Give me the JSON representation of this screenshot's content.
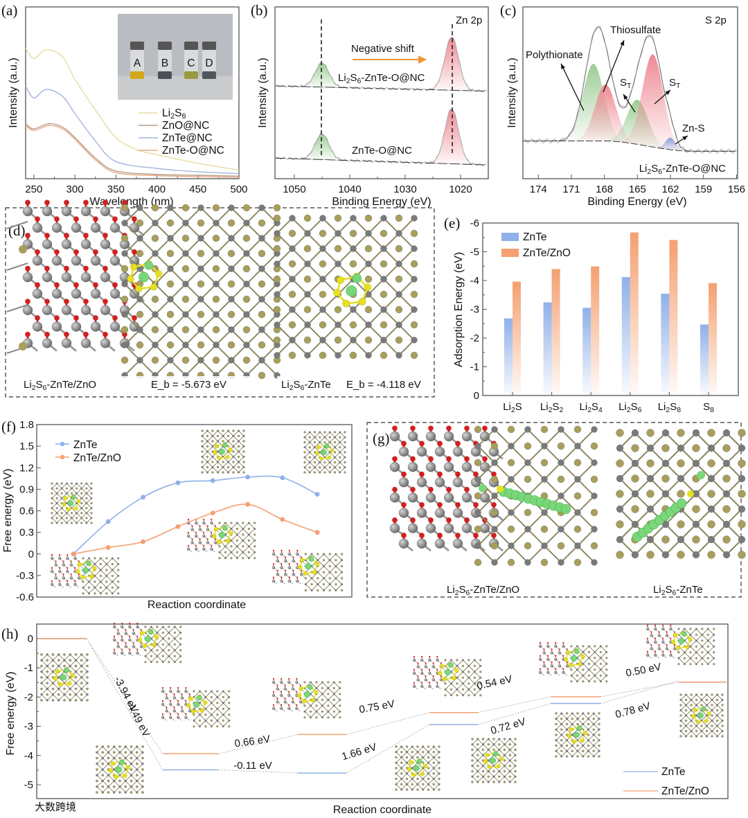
{
  "colors": {
    "znte": "#8fb0e8",
    "znte_zno": "#f4a070",
    "axis": "#555555",
    "green": "#9ccc94",
    "red": "#ee8a94",
    "blue": "#8a9ed8",
    "olive": "#a89f5c",
    "grey": "#7a7a7a",
    "o_red": "#d22020",
    "s_yellow": "#e6e020",
    "li_green": "#7bd67b"
  },
  "panel_labels": {
    "a": "(a)",
    "b": "(b)",
    "c": "(c)",
    "d": "(d)",
    "e": "(e)",
    "f": "(f)",
    "g": "(g)",
    "h": "(h)"
  },
  "chart_data": [
    {
      "id": "a",
      "type": "line",
      "xlabel": "Wavelength (nm)",
      "ylabel": "Intensity (a.u.)",
      "xlim": [
        240,
        500
      ],
      "ylim": [
        0,
        1
      ],
      "xticks": [
        "250",
        "300",
        "350",
        "400",
        "450",
        "500"
      ],
      "inset_labels": [
        "A",
        "B",
        "C",
        "D"
      ],
      "series": [
        {
          "name": "Li_2S_6",
          "color": "#e8dca0",
          "x": [
            240,
            250,
            265,
            285,
            300,
            325,
            350,
            375,
            400,
            450,
            500
          ],
          "y": [
            0.76,
            0.7,
            0.75,
            0.71,
            0.58,
            0.4,
            0.24,
            0.17,
            0.14,
            0.09,
            0.05
          ]
        },
        {
          "name": "ZnO@NC",
          "color": "#b89a80",
          "x": [
            240,
            250,
            268,
            285,
            300,
            325,
            350,
            400,
            450,
            500
          ],
          "y": [
            0.32,
            0.29,
            0.32,
            0.3,
            0.24,
            0.12,
            0.045,
            0.025,
            0.02,
            0.015
          ]
        },
        {
          "name": "ZnTe@NC",
          "color": "#a3b4dc",
          "x": [
            240,
            250,
            265,
            285,
            300,
            325,
            350,
            400,
            450,
            500
          ],
          "y": [
            0.54,
            0.47,
            0.52,
            0.48,
            0.38,
            0.22,
            0.1,
            0.06,
            0.04,
            0.03
          ]
        },
        {
          "name": "ZnTe-O@NC",
          "color": "#e8a888",
          "x": [
            240,
            250,
            268,
            285,
            300,
            325,
            350,
            400,
            450,
            500
          ],
          "y": [
            0.31,
            0.28,
            0.31,
            0.29,
            0.23,
            0.11,
            0.035,
            0.018,
            0.012,
            0.008
          ]
        }
      ]
    },
    {
      "id": "b",
      "type": "line",
      "xlabel": "Binding Energy (eV)",
      "ylabel": "Intensity (a.u.)",
      "xlim": [
        1053.5,
        1015
      ],
      "ylim": [
        0,
        1
      ],
      "xticks": [
        "1050",
        "1040",
        "1030",
        "1020"
      ],
      "xtick_values": [
        1050,
        1040,
        1030,
        1020
      ],
      "title": "Zn 2p",
      "annotation": "Negative shift",
      "series": [
        {
          "name": "Li_2S_6-ZnTe-O@NC",
          "baseline": [
            0.54,
            0.51
          ],
          "peaks": [
            {
              "center": 1045.0,
              "amp": 0.14,
              "color": "green"
            },
            {
              "center": 1021.6,
              "amp": 0.31,
              "color": "red"
            }
          ]
        },
        {
          "name": "ZnTe-O@NC",
          "baseline": [
            0.12,
            0.08
          ],
          "peaks": [
            {
              "center": 1045.0,
              "amp": 0.15,
              "color": "green"
            },
            {
              "center": 1021.6,
              "amp": 0.32,
              "color": "red"
            }
          ]
        }
      ]
    },
    {
      "id": "c",
      "type": "line",
      "xlabel": "Binding Energy (eV)",
      "ylabel": "Intensity (a.u.)",
      "xlim": [
        175.4,
        155.9
      ],
      "ylim": [
        0,
        1
      ],
      "xticks": [
        "174",
        "171",
        "168",
        "165",
        "162",
        "159",
        "156"
      ],
      "xtick_values": [
        174,
        171,
        168,
        165,
        162,
        159,
        156
      ],
      "title": "S 2p",
      "sample": "Li_2S_6-ZnTe-O@NC",
      "baseline": [
        0.22,
        0.16
      ],
      "components": [
        {
          "name": "Polythionate",
          "center": 169.0,
          "amp": 0.45,
          "color": "green"
        },
        {
          "name": "Thiosulfate",
          "center": 167.9,
          "amp": 0.33,
          "color": "red"
        },
        {
          "name": "S_T",
          "center": 165.0,
          "amp": 0.26,
          "color": "green"
        },
        {
          "name": "S_T",
          "center": 163.6,
          "amp": 0.54,
          "color": "red"
        },
        {
          "name": "Zn-S",
          "center": 162.0,
          "amp": 0.07,
          "color": "blue"
        }
      ]
    },
    {
      "id": "e",
      "type": "bar",
      "ylabel": "Adsorption Energy (eV)",
      "ylim": [
        0,
        -6
      ],
      "yticks": [
        "0",
        "-1",
        "-2",
        "-3",
        "-4",
        "-5",
        "-6"
      ],
      "categories": [
        "Li_2S",
        "Li_2S_2",
        "Li_2S_4",
        "Li_2S_6",
        "Li_2S_8",
        "S_8"
      ],
      "series": [
        {
          "name": "ZnTe",
          "values": [
            -2.68,
            -3.24,
            -3.05,
            -4.118,
            -3.54,
            -2.47
          ]
        },
        {
          "name": "ZnTe/ZnO",
          "values": [
            -3.96,
            -4.4,
            -4.49,
            -5.673,
            -5.41,
            -3.91
          ]
        }
      ]
    },
    {
      "id": "f",
      "type": "line",
      "xlabel": "Reaction coordinate",
      "ylabel": "Free energy (eV)",
      "ylim": [
        -0.6,
        1.8
      ],
      "yticks": [
        "-0.6",
        "-0.3",
        "0",
        "0.3",
        "0.6",
        "0.9",
        "1.2",
        "1.5",
        "1.8"
      ],
      "series": [
        {
          "name": "ZnTe",
          "values": [
            0,
            0.45,
            0.79,
            0.99,
            1.02,
            1.07,
            1.06,
            0.83
          ]
        },
        {
          "name": "ZnTe/ZnO",
          "values": [
            0,
            0.09,
            0.17,
            0.38,
            0.57,
            0.69,
            0.48,
            0.3
          ]
        }
      ]
    },
    {
      "id": "h",
      "type": "line",
      "xlabel": "Reaction coordinate",
      "ylabel": "Free energy (eV)",
      "ylim": [
        -5.5,
        0.5
      ],
      "yticks": [
        "0",
        "-1",
        "-2",
        "-3",
        "-4",
        "-5"
      ],
      "series": [
        {
          "name": "ZnTe",
          "levels": [
            0,
            -4.49,
            -4.6,
            -2.94,
            -2.22,
            -1.44
          ],
          "steps": [
            "-4.49 eV",
            "-0.11 eV",
            "1.66 eV",
            "0.72 eV",
            "0.78 eV"
          ]
        },
        {
          "name": "ZnTe/ZnO",
          "levels": [
            0,
            -3.94,
            -3.28,
            -2.53,
            -1.99,
            -1.49
          ],
          "steps": [
            "-3.94 eV",
            "0.66 eV",
            "0.75 eV",
            "0.54 eV",
            "0.50 eV"
          ]
        }
      ]
    }
  ],
  "panel_d": {
    "left_caption": "Li_2S_6-ZnTe/ZnO",
    "left_energy": "E_b = -5.673 eV",
    "right_caption": "Li_2S_6-ZnTe",
    "right_energy": "E_b = -4.118 eV"
  },
  "panel_g": {
    "left_caption": "Li_2S_6-ZnTe/ZnO",
    "right_caption": "Li_2S_6-ZnTe"
  },
  "watermark": "大数跨境"
}
